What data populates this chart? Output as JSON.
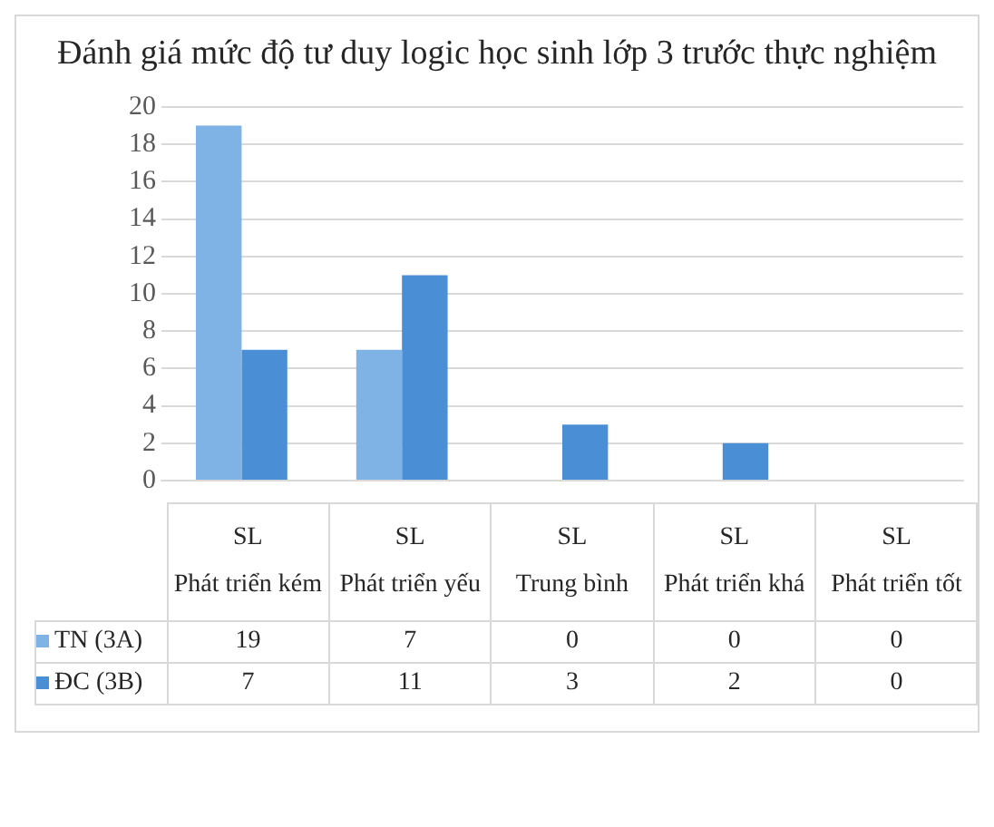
{
  "chart_data": {
    "type": "bar",
    "title": "Đánh giá mức độ tư duy logic  học sinh lớp 3 trước thực nghiệm",
    "categories": [
      "SL\nPhát triển kém",
      "SL\nPhát triển yếu",
      "SL\nTrung bình",
      "SL\nPhát triển khá",
      "SL\nPhát triển tốt"
    ],
    "series": [
      {
        "name": "TN (3A)",
        "color": "#7fb2e5",
        "values": [
          19,
          7,
          0,
          0,
          0
        ]
      },
      {
        "name": "ĐC (3B)",
        "color": "#4a8fd6",
        "values": [
          7,
          11,
          3,
          2,
          0
        ]
      }
    ],
    "ylim": [
      0,
      20
    ],
    "yticks": [
      0,
      2,
      4,
      6,
      8,
      10,
      12,
      14,
      16,
      18,
      20
    ],
    "grid": "y",
    "legend": "bottom",
    "data_labels": true
  }
}
